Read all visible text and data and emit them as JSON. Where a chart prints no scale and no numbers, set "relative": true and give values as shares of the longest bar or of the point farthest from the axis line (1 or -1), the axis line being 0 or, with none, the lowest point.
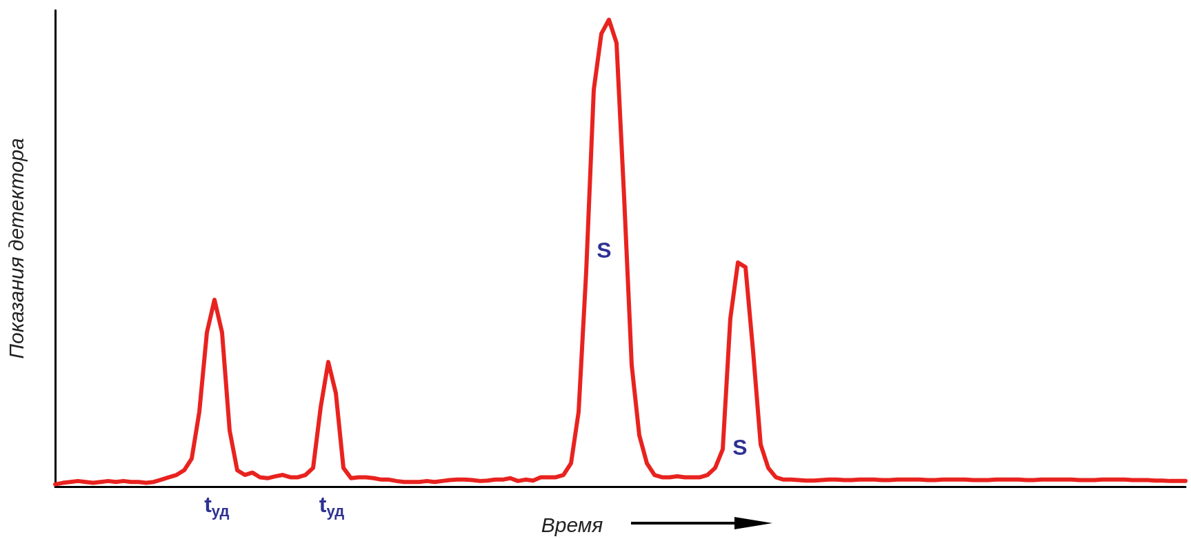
{
  "chart_data": {
    "type": "line",
    "relative": true,
    "xlabel": "Время",
    "ylabel": "Показания детектора",
    "marker": "none",
    "line_style": "solid",
    "categories": [
      null,
      null,
      null,
      null,
      null,
      null,
      null,
      null,
      null,
      null,
      null,
      null,
      null,
      null,
      null,
      null,
      null,
      null,
      null,
      null,
      null,
      null,
      null,
      null,
      null,
      null,
      null,
      null,
      null,
      null,
      null,
      null,
      null,
      null,
      null,
      null,
      null,
      null,
      null,
      null,
      null,
      null,
      null,
      null,
      null,
      null,
      null,
      null,
      null,
      null,
      null,
      null,
      null,
      null,
      null,
      null,
      null,
      null,
      null,
      null,
      null,
      null,
      null,
      null,
      null,
      null,
      null,
      null,
      null,
      null,
      null,
      null,
      null,
      null,
      null,
      null,
      null,
      null,
      null,
      null,
      null,
      null,
      null,
      null,
      null,
      null,
      null,
      null,
      null,
      null,
      null,
      null,
      null,
      null,
      null,
      null,
      null,
      null,
      null,
      null,
      null,
      null,
      null,
      null,
      null,
      null,
      null,
      null,
      null,
      null,
      null,
      null,
      null,
      null,
      null,
      null,
      null,
      null,
      null,
      null,
      null,
      null,
      null,
      null,
      null,
      null,
      null,
      null,
      null,
      null,
      null,
      null,
      null,
      null,
      null,
      null,
      null,
      null,
      null,
      null,
      null,
      null,
      null,
      null,
      null,
      null,
      null,
      null,
      null,
      null
    ],
    "series": [
      {
        "color": "#e8231f",
        "values": [
          0.005,
          0.008,
          0.01,
          0.012,
          0.01,
          0.008,
          0.01,
          0.012,
          0.01,
          0.012,
          0.01,
          0.01,
          0.008,
          0.01,
          0.015,
          0.02,
          0.025,
          0.035,
          0.06,
          0.16,
          0.33,
          0.4,
          0.33,
          0.12,
          0.035,
          0.025,
          0.03,
          0.02,
          0.018,
          0.022,
          0.025,
          0.02,
          0.02,
          0.025,
          0.04,
          0.17,
          0.267,
          0.2,
          0.04,
          0.018,
          0.02,
          0.02,
          0.018,
          0.015,
          0.015,
          0.012,
          0.01,
          0.01,
          0.01,
          0.012,
          0.01,
          0.012,
          0.014,
          0.015,
          0.015,
          0.014,
          0.012,
          0.013,
          0.015,
          0.015,
          0.018,
          0.012,
          0.015,
          0.013,
          0.02,
          0.02,
          0.02,
          0.025,
          0.05,
          0.16,
          0.46,
          0.85,
          0.97,
          1,
          0.95,
          0.62,
          0.26,
          0.11,
          0.05,
          0.025,
          0.02,
          0.02,
          0.022,
          0.02,
          0.02,
          0.02,
          0.025,
          0.04,
          0.08,
          0.36,
          0.48,
          0.47,
          0.29,
          0.09,
          0.04,
          0.02,
          0.015,
          0.015,
          0.014,
          0.013,
          0.013,
          0.014,
          0.015,
          0.015,
          0.014,
          0.014,
          0.015,
          0.015,
          0.015,
          0.014,
          0.014,
          0.015,
          0.015,
          0.015,
          0.015,
          0.014,
          0.014,
          0.015,
          0.015,
          0.015,
          0.015,
          0.014,
          0.014,
          0.014,
          0.015,
          0.015,
          0.015,
          0.015,
          0.014,
          0.014,
          0.015,
          0.015,
          0.015,
          0.015,
          0.015,
          0.014,
          0.014,
          0.014,
          0.015,
          0.015,
          0.015,
          0.015,
          0.014,
          0.014,
          0.014,
          0.013,
          0.013,
          0.012,
          0.012,
          0.012
        ]
      }
    ],
    "annotations": [
      "t$_{уд}$",
      "t$_{уд}$",
      "S",
      "S"
    ]
  }
}
